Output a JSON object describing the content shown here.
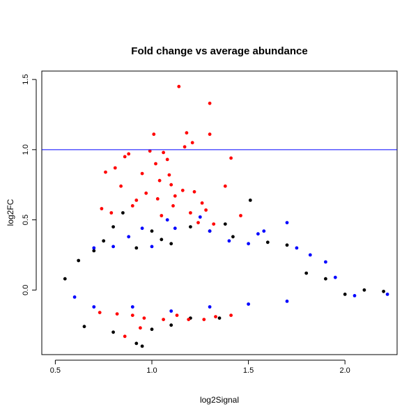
{
  "chart_data": {
    "type": "scatter",
    "title": "Fold change vs average abundance",
    "xlabel": "log2Signal",
    "ylabel": "log2FC",
    "xlim": [
      0.43,
      2.27
    ],
    "ylim": [
      -0.46,
      1.56
    ],
    "x_ticks": [
      0.5,
      1.0,
      1.5,
      2.0
    ],
    "x_tick_labels": [
      "0.5",
      "1.0",
      "1.5",
      "2.0"
    ],
    "y_ticks": [
      0.0,
      0.5,
      1.0,
      1.5
    ],
    "y_tick_labels": [
      "0.0",
      "0.5",
      "1.0",
      "1.5"
    ],
    "reference_line": {
      "y": 1.0,
      "color": "#0000ff"
    },
    "grid": false,
    "legend": "none",
    "series": [
      {
        "color": "#000000",
        "points": [
          [
            0.55,
            0.08
          ],
          [
            0.62,
            0.21
          ],
          [
            0.7,
            0.28
          ],
          [
            0.75,
            0.35
          ],
          [
            0.8,
            0.45
          ],
          [
            0.85,
            0.55
          ],
          [
            0.92,
            0.3
          ],
          [
            1.0,
            0.42
          ],
          [
            1.05,
            0.36
          ],
          [
            1.1,
            0.33
          ],
          [
            1.2,
            0.45
          ],
          [
            1.3,
            0.42
          ],
          [
            1.38,
            0.47
          ],
          [
            1.42,
            0.38
          ],
          [
            1.51,
            0.64
          ],
          [
            1.6,
            0.34
          ],
          [
            1.7,
            0.32
          ],
          [
            1.8,
            0.12
          ],
          [
            1.9,
            0.08
          ],
          [
            2.0,
            -0.03
          ],
          [
            2.1,
            0.0
          ],
          [
            2.2,
            -0.01
          ],
          [
            0.65,
            -0.26
          ],
          [
            0.8,
            -0.3
          ],
          [
            0.92,
            -0.38
          ],
          [
            0.95,
            -0.4
          ],
          [
            1.0,
            -0.28
          ],
          [
            1.1,
            -0.25
          ],
          [
            1.2,
            -0.2
          ],
          [
            1.35,
            -0.2
          ]
        ]
      },
      {
        "color": "#0000ff",
        "points": [
          [
            0.7,
            0.3
          ],
          [
            0.8,
            0.31
          ],
          [
            0.88,
            0.38
          ],
          [
            0.95,
            0.44
          ],
          [
            1.0,
            0.31
          ],
          [
            1.08,
            0.5
          ],
          [
            1.12,
            0.44
          ],
          [
            1.25,
            0.52
          ],
          [
            1.3,
            0.42
          ],
          [
            1.4,
            0.35
          ],
          [
            1.5,
            0.33
          ],
          [
            1.55,
            0.4
          ],
          [
            1.58,
            0.42
          ],
          [
            1.7,
            0.48
          ],
          [
            1.75,
            0.3
          ],
          [
            1.82,
            0.25
          ],
          [
            1.9,
            0.2
          ],
          [
            1.95,
            0.09
          ],
          [
            2.05,
            -0.04
          ],
          [
            2.22,
            -0.03
          ],
          [
            0.6,
            -0.05
          ],
          [
            0.7,
            -0.12
          ],
          [
            0.9,
            -0.12
          ],
          [
            1.1,
            -0.15
          ],
          [
            1.3,
            -0.12
          ],
          [
            1.5,
            -0.1
          ],
          [
            1.7,
            -0.08
          ]
        ]
      },
      {
        "color": "#ff0000",
        "points": [
          [
            0.74,
            0.58
          ],
          [
            0.76,
            0.84
          ],
          [
            0.79,
            0.55
          ],
          [
            0.81,
            0.87
          ],
          [
            0.84,
            0.74
          ],
          [
            0.86,
            0.95
          ],
          [
            0.88,
            0.97
          ],
          [
            0.9,
            0.6
          ],
          [
            0.92,
            0.64
          ],
          [
            0.95,
            0.83
          ],
          [
            0.97,
            0.69
          ],
          [
            0.99,
            0.99
          ],
          [
            1.01,
            1.11
          ],
          [
            1.02,
            0.9
          ],
          [
            1.03,
            0.65
          ],
          [
            1.04,
            0.78
          ],
          [
            1.05,
            0.53
          ],
          [
            1.06,
            0.98
          ],
          [
            1.08,
            0.93
          ],
          [
            1.09,
            0.82
          ],
          [
            1.1,
            0.75
          ],
          [
            1.11,
            0.6
          ],
          [
            1.12,
            0.67
          ],
          [
            1.14,
            1.45
          ],
          [
            1.16,
            0.71
          ],
          [
            1.17,
            1.02
          ],
          [
            1.18,
            1.12
          ],
          [
            1.2,
            0.55
          ],
          [
            1.21,
            1.05
          ],
          [
            1.22,
            0.7
          ],
          [
            1.24,
            0.48
          ],
          [
            1.26,
            0.62
          ],
          [
            1.28,
            0.57
          ],
          [
            1.3,
            1.33
          ],
          [
            1.3,
            1.11
          ],
          [
            1.32,
            0.47
          ],
          [
            1.38,
            0.74
          ],
          [
            1.41,
            0.94
          ],
          [
            1.46,
            0.53
          ],
          [
            0.73,
            -0.16
          ],
          [
            0.82,
            -0.17
          ],
          [
            0.9,
            -0.18
          ],
          [
            0.96,
            -0.2
          ],
          [
            1.06,
            -0.21
          ],
          [
            1.13,
            -0.18
          ],
          [
            1.19,
            -0.21
          ],
          [
            1.27,
            -0.21
          ],
          [
            1.33,
            -0.19
          ],
          [
            1.41,
            -0.18
          ],
          [
            0.86,
            -0.33
          ],
          [
            0.94,
            -0.27
          ]
        ]
      }
    ]
  }
}
